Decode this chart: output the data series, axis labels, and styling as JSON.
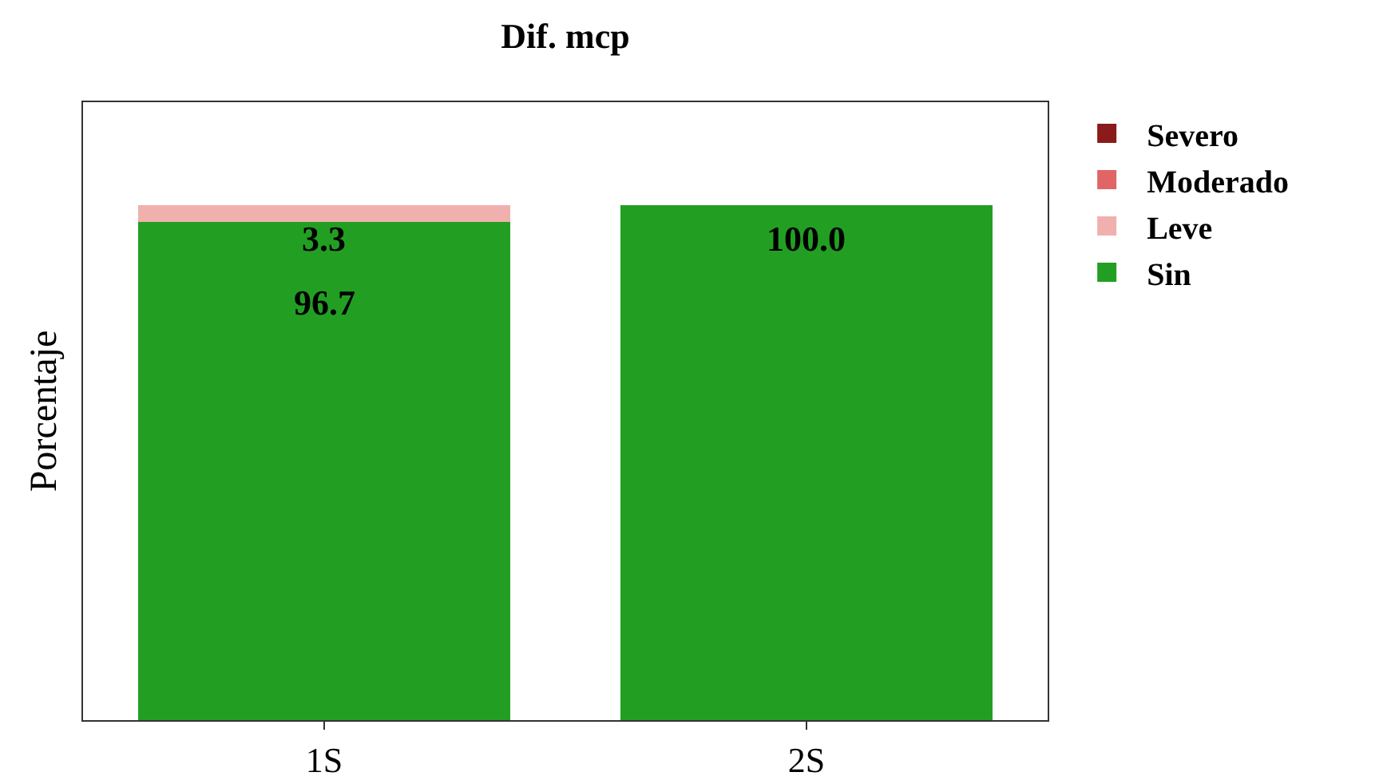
{
  "chart_data": {
    "type": "bar",
    "title": "Dif. mcp",
    "ylabel": "Porcentaje",
    "categories": [
      "1S",
      "2S"
    ],
    "stacked": true,
    "series": [
      {
        "name": "Sin",
        "color": "#229f22",
        "values": [
          96.7,
          100.0
        ],
        "value_labels": [
          "96.7",
          "100.0"
        ]
      },
      {
        "name": "Leve",
        "color": "#f0b0ae",
        "values": [
          3.3,
          0
        ],
        "value_labels": [
          "3.3",
          null
        ]
      },
      {
        "name": "Moderado",
        "color": "#e06666",
        "values": [
          0,
          0
        ],
        "value_labels": [
          null,
          null
        ]
      },
      {
        "name": "Severo",
        "color": "#8b1a1a",
        "values": [
          0,
          0
        ],
        "value_labels": [
          null,
          null
        ]
      }
    ],
    "ylim": [
      0,
      120
    ],
    "tick_labels": "x",
    "grid": false,
    "legend": "right"
  }
}
